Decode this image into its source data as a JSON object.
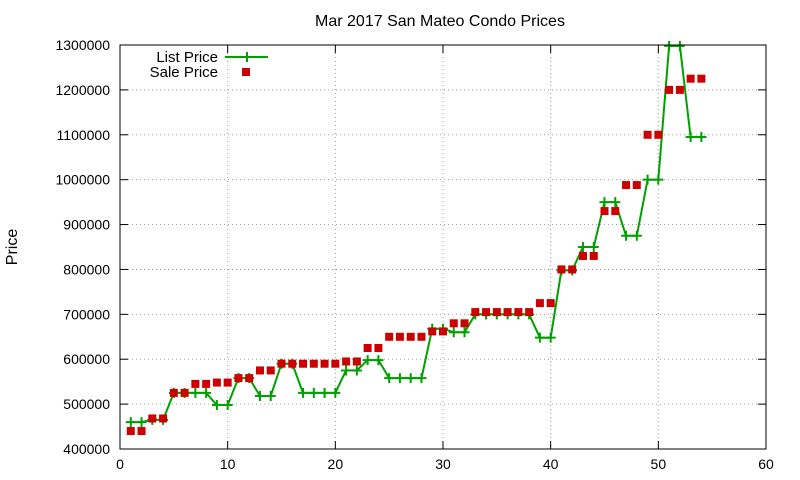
{
  "chart_data": {
    "type": "line",
    "title": "Mar 2017 San Mateo Condo Prices",
    "xlabel": "",
    "ylabel": "Price",
    "xlim": [
      0,
      60
    ],
    "ylim": [
      400000,
      1300000
    ],
    "xticks": [
      0,
      10,
      20,
      30,
      40,
      50,
      60
    ],
    "yticks": [
      400000,
      500000,
      600000,
      700000,
      800000,
      900000,
      1000000,
      1100000,
      1200000,
      1300000
    ],
    "grid": true,
    "legend_position": "top-left",
    "series": [
      {
        "name": "List Price",
        "style": "line-with-plus-markers",
        "color": "#00a000",
        "x": [
          1,
          2,
          3,
          4,
          5,
          6,
          7,
          8,
          9,
          10,
          11,
          12,
          13,
          14,
          15,
          16,
          17,
          18,
          19,
          20,
          21,
          22,
          23,
          24,
          25,
          26,
          27,
          28,
          29,
          30,
          31,
          32,
          33,
          34,
          35,
          36,
          37,
          38,
          39,
          40,
          41,
          42,
          43,
          44,
          45,
          46,
          47,
          48,
          49,
          50,
          51,
          52,
          53,
          54
        ],
        "values": [
          460000,
          460000,
          465000,
          465000,
          525000,
          525000,
          525000,
          525000,
          498000,
          498000,
          558000,
          558000,
          518000,
          518000,
          590000,
          590000,
          525000,
          525000,
          525000,
          525000,
          575000,
          575000,
          598000,
          598000,
          558000,
          558000,
          558000,
          558000,
          668000,
          668000,
          660000,
          660000,
          700000,
          700000,
          700000,
          700000,
          700000,
          700000,
          648000,
          648000,
          798000,
          798000,
          850000,
          850000,
          950000,
          950000,
          875000,
          875000,
          1000000,
          1000000,
          1298000,
          1298000,
          1095000,
          1095000
        ]
      },
      {
        "name": "Sale Price",
        "style": "square-markers",
        "color": "#cc0000",
        "x": [
          1,
          2,
          3,
          4,
          5,
          6,
          7,
          8,
          9,
          10,
          11,
          12,
          13,
          14,
          15,
          16,
          17,
          18,
          19,
          20,
          21,
          22,
          23,
          24,
          25,
          26,
          27,
          28,
          29,
          30,
          31,
          32,
          33,
          34,
          35,
          36,
          37,
          38,
          39,
          40,
          41,
          42,
          43,
          44,
          45,
          46,
          47,
          48,
          49,
          50,
          51,
          52,
          53,
          54
        ],
        "values": [
          440000,
          440000,
          468000,
          468000,
          525000,
          525000,
          545000,
          545000,
          548000,
          548000,
          558000,
          558000,
          575000,
          575000,
          590000,
          590000,
          590000,
          590000,
          590000,
          590000,
          595000,
          595000,
          625000,
          625000,
          650000,
          650000,
          650000,
          650000,
          662000,
          662000,
          680000,
          680000,
          705000,
          705000,
          705000,
          705000,
          705000,
          705000,
          725000,
          725000,
          800000,
          800000,
          830000,
          830000,
          930000,
          930000,
          988000,
          988000,
          1100000,
          1100000,
          1200000,
          1200000,
          1225000,
          1225000
        ]
      }
    ]
  }
}
